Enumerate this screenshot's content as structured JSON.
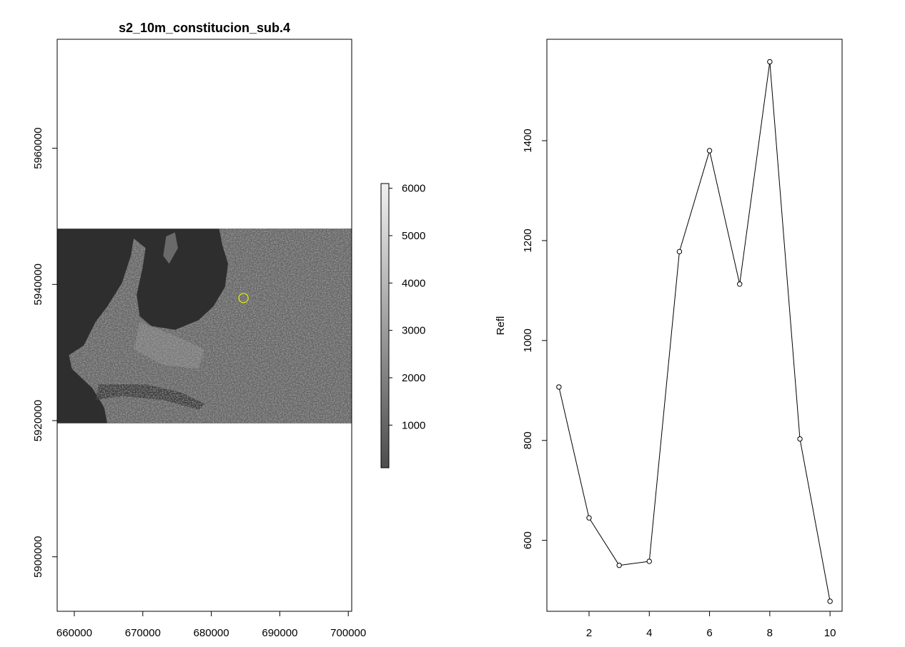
{
  "chart_data": [
    {
      "type": "heatmap",
      "title": "s2_10m_constitucion_sub.4",
      "xlim": [
        657500,
        700500
      ],
      "ylim": [
        5892000,
        5976000
      ],
      "x_ticks": [
        "660000",
        "670000",
        "680000",
        "690000",
        "700000"
      ],
      "y_ticks": [
        "5900000",
        "5920000",
        "5940000",
        "5960000"
      ],
      "raster_extent": {
        "xmin": 657500,
        "xmax": 700500,
        "ymin": 5919600,
        "ymax": 5948200
      },
      "colorbar": {
        "range": [
          100,
          6100
        ],
        "ticks": [
          "1000",
          "2000",
          "3000",
          "4000",
          "5000",
          "6000"
        ],
        "low_color": "#4d4d4d",
        "high_color": "#f0f0f0"
      },
      "marker": {
        "x": 684700,
        "y": 5938000,
        "color": "#e6e600",
        "shape": "circle"
      },
      "water_color": "#2e2e2e",
      "land_color": "#666666"
    },
    {
      "type": "line",
      "title": "",
      "xlabel": "",
      "ylabel": "Refl",
      "x": [
        1,
        2,
        3,
        4,
        5,
        6,
        7,
        8,
        9,
        10
      ],
      "y": [
        907,
        645,
        550,
        558,
        1178,
        1380,
        1113,
        1558,
        803,
        478
      ],
      "xlim": [
        0.6,
        10.4
      ],
      "ylim": [
        458,
        1603
      ],
      "x_ticks": [
        "2",
        "4",
        "6",
        "8",
        "10"
      ],
      "y_ticks": [
        "600",
        "800",
        "1000",
        "1200",
        "1400"
      ],
      "marker": "open-circle",
      "line_color": "#000000"
    }
  ]
}
